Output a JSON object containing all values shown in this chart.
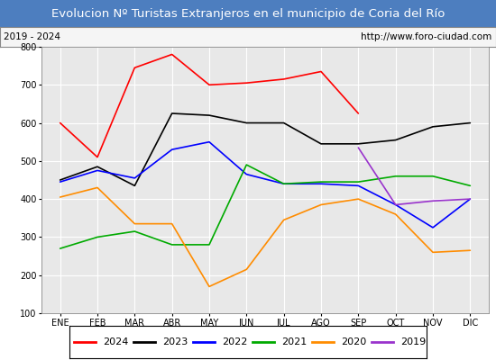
{
  "title": "Evolucion Nº Turistas Extranjeros en el municipio de Coria del Río",
  "subtitle_left": "2019 - 2024",
  "subtitle_right": "http://www.foro-ciudad.com",
  "title_bg_color": "#4d7ebf",
  "title_text_color": "#ffffff",
  "subtitle_bg_color": "#f5f5f5",
  "subtitle_border_color": "#888888",
  "plot_bg_color": "#e8e8e8",
  "grid_color": "#ffffff",
  "months": [
    "ENE",
    "FEB",
    "MAR",
    "ABR",
    "MAY",
    "JUN",
    "JUL",
    "AGO",
    "SEP",
    "OCT",
    "NOV",
    "DIC"
  ],
  "ylim": [
    100,
    800
  ],
  "yticks": [
    100,
    200,
    300,
    400,
    500,
    600,
    700,
    800
  ],
  "series": {
    "2024": {
      "color": "#ff0000",
      "values": [
        600,
        510,
        745,
        780,
        700,
        705,
        715,
        735,
        625,
        null,
        null,
        null
      ]
    },
    "2023": {
      "color": "#000000",
      "values": [
        450,
        485,
        435,
        625,
        620,
        600,
        600,
        545,
        545,
        555,
        590,
        600
      ]
    },
    "2022": {
      "color": "#0000ff",
      "values": [
        445,
        475,
        455,
        530,
        550,
        465,
        440,
        440,
        435,
        385,
        325,
        400
      ]
    },
    "2021": {
      "color": "#00aa00",
      "values": [
        270,
        300,
        315,
        280,
        280,
        490,
        440,
        445,
        445,
        460,
        460,
        435
      ]
    },
    "2020": {
      "color": "#ff8c00",
      "values": [
        405,
        430,
        335,
        335,
        170,
        215,
        345,
        385,
        400,
        360,
        260,
        265
      ]
    },
    "2019": {
      "color": "#9933cc",
      "values": [
        null,
        null,
        null,
        null,
        null,
        null,
        null,
        null,
        535,
        385,
        395,
        400
      ]
    }
  },
  "legend_order": [
    "2024",
    "2023",
    "2022",
    "2021",
    "2020",
    "2019"
  ],
  "fig_width": 5.5,
  "fig_height": 4.0,
  "dpi": 100
}
